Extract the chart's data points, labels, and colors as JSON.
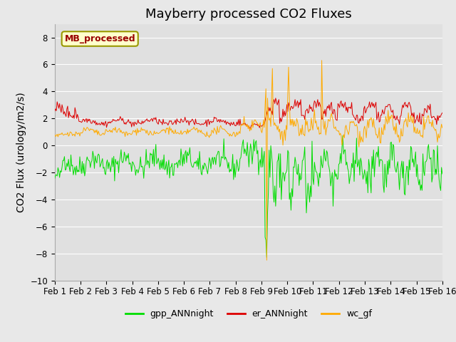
{
  "title": "Mayberry processed CO2 Fluxes",
  "ylabel": "CO2 Flux (urology/m2/s)",
  "ylim": [
    -10,
    9
  ],
  "yticks": [
    -10,
    -8,
    -6,
    -4,
    -2,
    0,
    2,
    4,
    6,
    8
  ],
  "n_points": 480,
  "xtick_labels": [
    "Feb 1",
    "Feb 2",
    "Feb 3",
    "Feb 4",
    "Feb 5",
    "Feb 6",
    "Feb 7",
    "Feb 8",
    "Feb 9",
    "Feb 10",
    "Feb 11",
    "Feb 12",
    "Feb 13",
    "Feb 14",
    "Feb 15",
    "Feb 16"
  ],
  "gpp_color": "#00dd00",
  "er_color": "#dd0000",
  "wc_color": "#ffaa00",
  "legend_entries": [
    "gpp_ANNnight",
    "er_ANNnight",
    "wc_gf"
  ],
  "inset_label": "MB_processed",
  "inset_label_color": "#990000",
  "inset_bg_color": "#ffffcc",
  "inset_border_color": "#999900",
  "background_color": "#e8e8e8",
  "plot_bg_color": "#e0e0e0",
  "grid_color": "#ffffff",
  "title_fontsize": 13,
  "axis_label_fontsize": 10,
  "tick_fontsize": 8.5,
  "legend_fontsize": 9
}
